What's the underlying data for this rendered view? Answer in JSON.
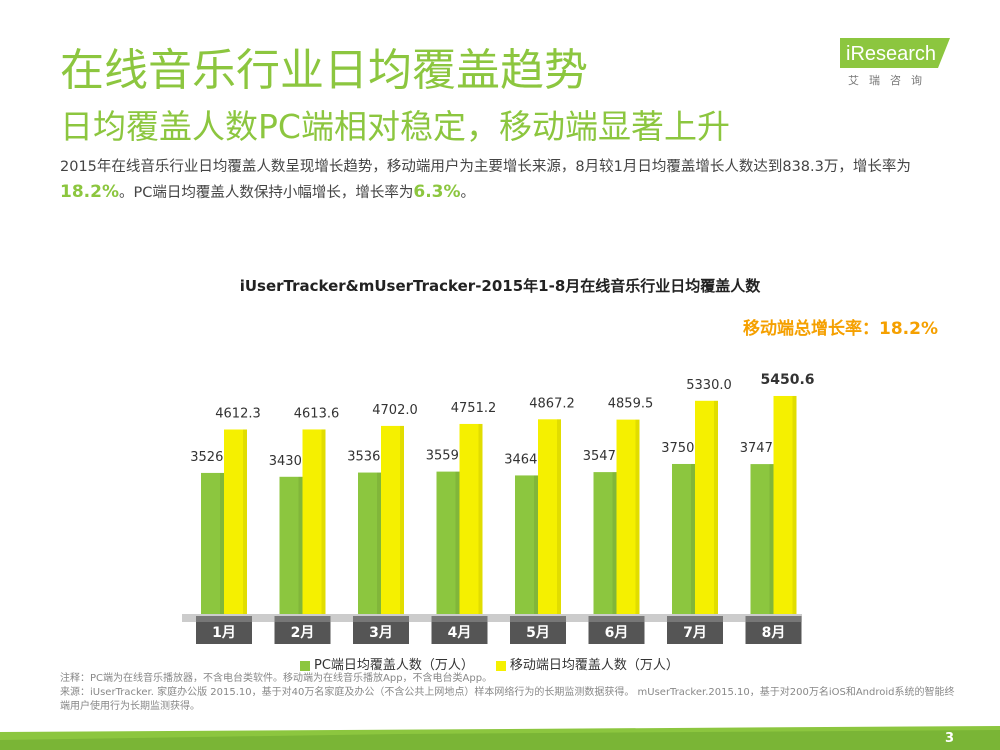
{
  "title": "在线音乐行业日均覆盖趋势",
  "subtitle": "日均覆盖人数PC端相对稳定，移动端显著上升",
  "logo": {
    "brand": "iResearch",
    "sub": "艾瑞咨询"
  },
  "summary": {
    "p1": "2015年在线音乐行业日均覆盖人数呈现增长趋势，移动端用户为主要增长来源，8月较1月日均覆盖增长人数达到838.3万，增长率为",
    "rate1": "18.2%",
    "p2": "。PC端日均覆盖人数保持小幅增长，增长率为",
    "rate2": "6.3%",
    "p3": "。"
  },
  "growth_label": "移动端总增长率：18.2%",
  "notes": {
    "n1": "注释：PC端为在线音乐播放器，不含电台类软件。移动端为在线音乐播放App，不含电台类App。",
    "n2": "来源：iUserTracker. 家庭办公版 2015.10，基于对40万名家庭及办公（不含公共上网地点）样本网络行为的长期监测数据获得。 mUserTracker.2015.10，基于对200万名iOS和Android系统的智能终端用户使用行为长期监测获得。"
  },
  "page_number": "3",
  "colors": {
    "green": "#8cc63f",
    "yellow": "#f5f000",
    "orange": "#f5a000"
  },
  "chart_data": {
    "type": "bar",
    "title": "iUserTracker&mUserTracker-2015年1-8月在线音乐行业日均覆盖人数",
    "categories": [
      "1月",
      "2月",
      "3月",
      "4月",
      "5月",
      "6月",
      "7月",
      "8月"
    ],
    "series": [
      {
        "name": "PC端日均覆盖人数（万人）",
        "values": [
          3526.8,
          3430.2,
          3536.2,
          3559.9,
          3464.2,
          3547.3,
          3750.7,
          3747.6
        ]
      },
      {
        "name": "移动端日均覆盖人数（万人）",
        "values": [
          4612.3,
          4613.6,
          4702.0,
          4751.2,
          4867.2,
          4859.5,
          5330.0,
          5450.6
        ]
      }
    ],
    "ylim": [
      0,
      6000
    ]
  }
}
